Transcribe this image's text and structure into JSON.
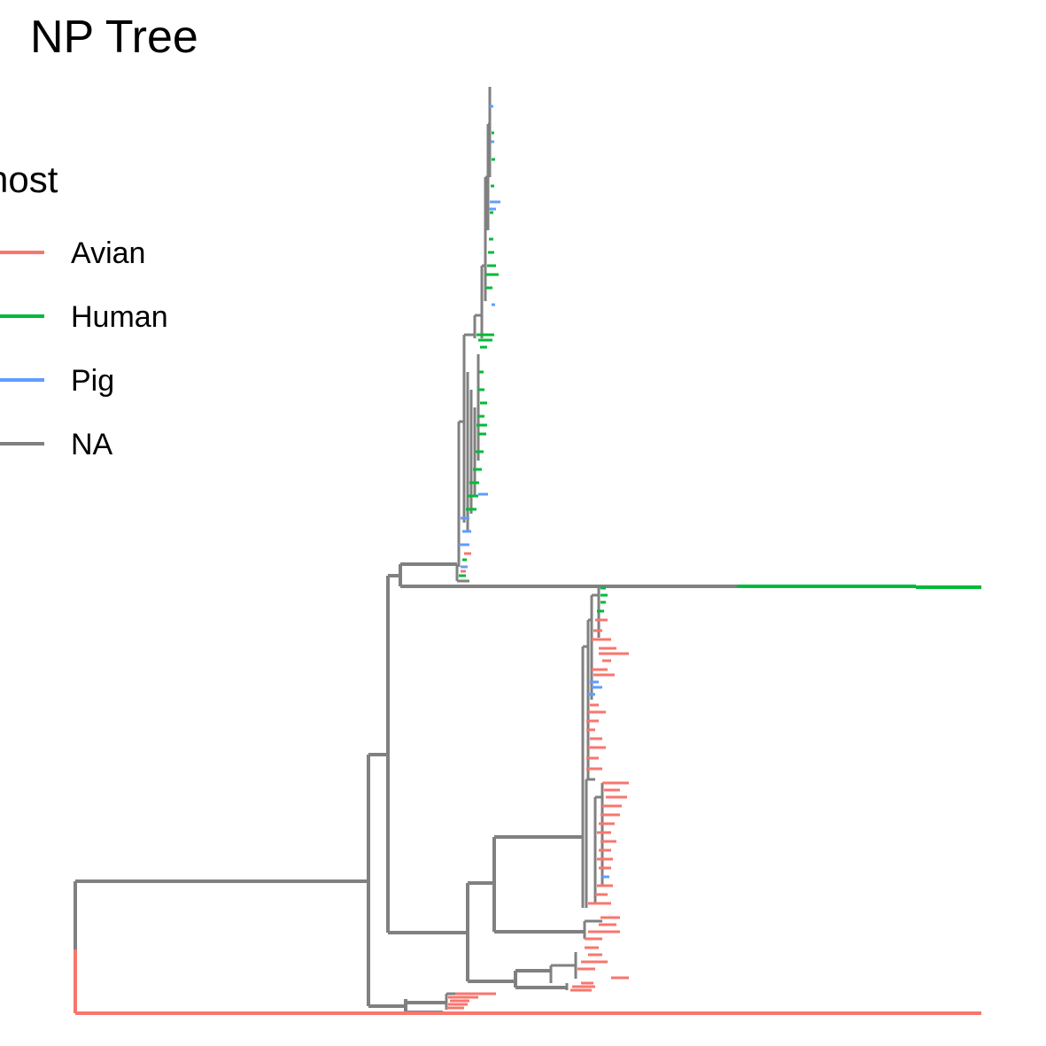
{
  "title": "NP Tree",
  "legend": {
    "title": "host",
    "position": "left",
    "items": [
      {
        "label": "Avian",
        "color": "#F8766D"
      },
      {
        "label": "Human",
        "color": "#00BA38"
      },
      {
        "label": "Pig",
        "color": "#619CFF"
      },
      {
        "label": "NA",
        "color": "#808080"
      }
    ]
  }
}
